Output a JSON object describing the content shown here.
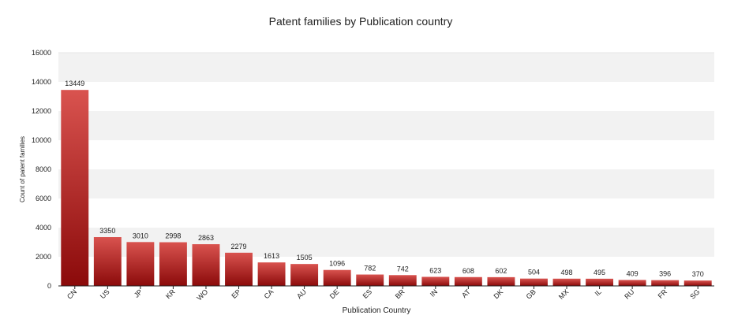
{
  "chart_data": {
    "type": "bar",
    "title": "Patent families by Publication country",
    "xlabel": "Publication Country",
    "ylabel": "Count of patent families",
    "categories": [
      "CN",
      "US",
      "JP",
      "KR",
      "WO",
      "EP",
      "CA",
      "AU",
      "DE",
      "ES",
      "BR",
      "IN",
      "AT",
      "DK",
      "GB",
      "MX",
      "IL",
      "RU",
      "FR",
      "SG"
    ],
    "values": [
      13449,
      3350,
      3010,
      2998,
      2863,
      2279,
      1613,
      1505,
      1096,
      782,
      742,
      623,
      608,
      602,
      504,
      498,
      495,
      409,
      396,
      370
    ],
    "ylim": [
      0,
      16000
    ],
    "yticks": [
      0,
      2000,
      4000,
      6000,
      8000,
      10000,
      12000,
      14000,
      16000
    ],
    "grid": "alternating horizontal bands",
    "legend": "none",
    "data_labels": true,
    "colors": {
      "bar_top": "#d9534f",
      "bar_bottom": "#8b0a0a",
      "band": "#f2f2f2",
      "axis": "#222222",
      "text": "#222222"
    }
  }
}
